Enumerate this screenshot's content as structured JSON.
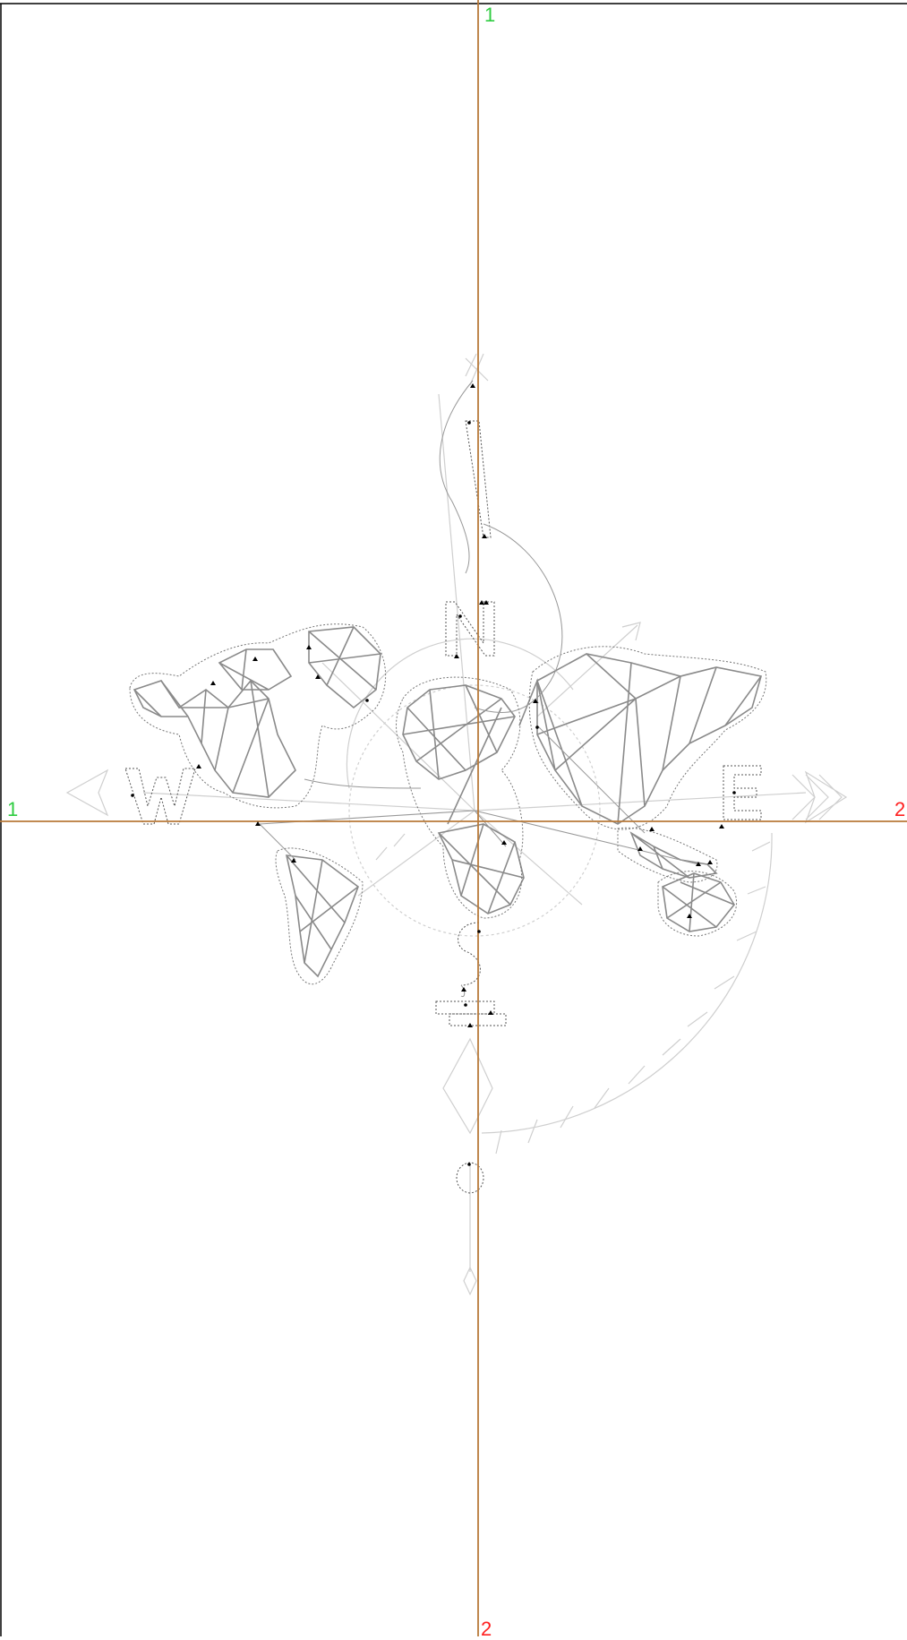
{
  "guides": {
    "vertical": {
      "start_label": "1",
      "end_label": "2"
    },
    "horizontal": {
      "start_label": "1",
      "end_label": "2"
    }
  },
  "compass_letters": [
    "N",
    "E",
    "S",
    "W"
  ],
  "colors": {
    "guide_line": "#b87a3a",
    "start_label": "#2ecc40",
    "end_label": "#ff2020",
    "stroke_dark": "#888888",
    "stroke_light": "#c8c8c8",
    "frame": "#000000"
  },
  "icons": [
    "node-marker-icon"
  ]
}
